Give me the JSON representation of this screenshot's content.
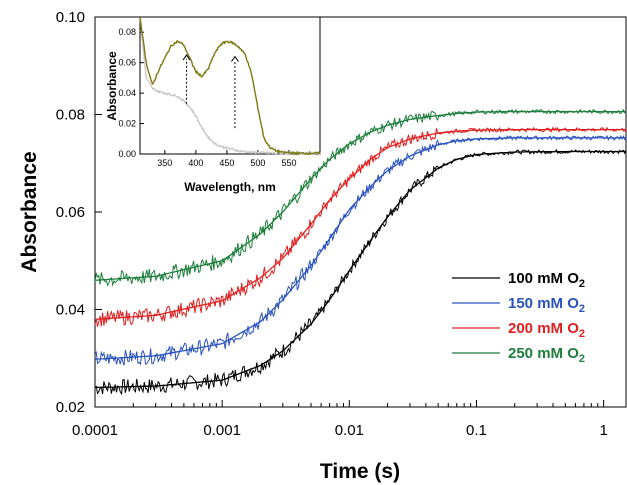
{
  "chart_data": [
    {
      "type": "line",
      "title": "",
      "xlabel": "Time (s)",
      "ylabel": "Absorbance",
      "xscale": "log",
      "xlim": [
        0.0001,
        1.5
      ],
      "ylim": [
        0.02,
        0.1
      ],
      "x_ticks": [
        0.0001,
        0.001,
        0.01,
        0.1,
        1
      ],
      "x_tick_labels": [
        "0.0001",
        "0.001",
        "0.01",
        "0.1",
        "1"
      ],
      "y_ticks": [
        0.02,
        0.04,
        0.06,
        0.08,
        0.1
      ],
      "y_tick_labels": [
        "0.02",
        "0.04",
        "0.06",
        "0.08",
        "0.10"
      ],
      "grid": false,
      "legend_position": "right",
      "series": [
        {
          "name": "100 mM O2",
          "label_main": "100 mM O",
          "label_sub": "2",
          "color": "#000000",
          "x": [
            0.0001,
            0.0003,
            0.001,
            0.002,
            0.003,
            0.005,
            0.007,
            0.01,
            0.015,
            0.02,
            0.03,
            0.05,
            0.07,
            0.1,
            0.2,
            0.5,
            1,
            1.5
          ],
          "y": [
            0.024,
            0.0243,
            0.0255,
            0.0285,
            0.0315,
            0.037,
            0.042,
            0.048,
            0.0545,
            0.059,
            0.0645,
            0.069,
            0.0708,
            0.0718,
            0.0723,
            0.0724,
            0.0724,
            0.0724
          ]
        },
        {
          "name": "150 mM O2",
          "label_main": "150 mM O",
          "label_sub": "2",
          "color": "#2a52be",
          "x": [
            0.0001,
            0.0003,
            0.001,
            0.002,
            0.003,
            0.005,
            0.007,
            0.01,
            0.015,
            0.02,
            0.03,
            0.05,
            0.07,
            0.1,
            0.2,
            0.5,
            1,
            1.5
          ],
          "y": [
            0.0298,
            0.0305,
            0.033,
            0.0375,
            0.042,
            0.049,
            0.0545,
            0.0605,
            0.0655,
            0.0685,
            0.0715,
            0.0738,
            0.0746,
            0.075,
            0.0752,
            0.0752,
            0.0752,
            0.0752
          ]
        },
        {
          "name": "200 mM O2",
          "label_main": "200 mM O",
          "label_sub": "2",
          "color": "#e02020",
          "x": [
            0.0001,
            0.0003,
            0.001,
            0.002,
            0.003,
            0.005,
            0.007,
            0.01,
            0.015,
            0.02,
            0.03,
            0.05,
            0.07,
            0.1,
            0.2,
            0.5,
            1,
            1.5
          ],
          "y": [
            0.038,
            0.0388,
            0.0418,
            0.0465,
            0.0505,
            0.0575,
            0.0625,
            0.0668,
            0.071,
            0.0732,
            0.075,
            0.0762,
            0.0766,
            0.0768,
            0.0769,
            0.0769,
            0.0769,
            0.0769
          ]
        },
        {
          "name": "250 mM O2",
          "label_main": "250 mM O",
          "label_sub": "2",
          "color": "#1e7e3c",
          "x": [
            0.0001,
            0.0003,
            0.001,
            0.002,
            0.003,
            0.005,
            0.007,
            0.01,
            0.015,
            0.02,
            0.03,
            0.05,
            0.07,
            0.1,
            0.2,
            0.5,
            1,
            1.5
          ],
          "y": [
            0.046,
            0.0468,
            0.05,
            0.0555,
            0.06,
            0.0668,
            0.0708,
            0.074,
            0.0765,
            0.0778,
            0.079,
            0.0798,
            0.0802,
            0.0805,
            0.0806,
            0.0806,
            0.0806,
            0.0806
          ]
        }
      ]
    },
    {
      "type": "line",
      "title": "",
      "xlabel": "Wavelength, nm",
      "ylabel": "Absorbance",
      "xlim": [
        310,
        600
      ],
      "ylim": [
        0,
        0.09
      ],
      "x_ticks": [
        350,
        400,
        450,
        500,
        550
      ],
      "x_tick_labels": [
        "350",
        "400",
        "450",
        "500",
        "550"
      ],
      "y_ticks": [
        0,
        0.02,
        0.04,
        0.06,
        0.08
      ],
      "y_tick_labels": [
        "0.00",
        "0.02",
        "0.04",
        "0.06",
        "0.08"
      ],
      "legend_position": "none",
      "series": [
        {
          "color": "#7a7a10",
          "x": [
            310,
            320,
            330,
            340,
            350,
            360,
            370,
            380,
            390,
            400,
            410,
            420,
            430,
            440,
            450,
            460,
            470,
            480,
            490,
            500,
            510,
            520,
            530,
            540,
            550,
            560,
            570,
            580,
            590,
            600
          ],
          "y": [
            0.09,
            0.06,
            0.045,
            0.055,
            0.063,
            0.071,
            0.074,
            0.072,
            0.063,
            0.054,
            0.051,
            0.056,
            0.066,
            0.072,
            0.074,
            0.073,
            0.07,
            0.065,
            0.052,
            0.03,
            0.01,
            0.004,
            0.002,
            0.001,
            0.001,
            0.0005,
            0.0005,
            0.0005,
            0.0005,
            0.0005
          ]
        },
        {
          "color": "#c8c8c8",
          "x": [
            310,
            320,
            330,
            340,
            350,
            360,
            370,
            380,
            390,
            400,
            410,
            420,
            430,
            440,
            450,
            460,
            470,
            480,
            490,
            500,
            510,
            520,
            530,
            540,
            550,
            560,
            570,
            580,
            590,
            600
          ],
          "y": [
            0.09,
            0.05,
            0.043,
            0.041,
            0.04,
            0.039,
            0.038,
            0.035,
            0.031,
            0.025,
            0.017,
            0.011,
            0.007,
            0.005,
            0.004,
            0.003,
            0.002,
            0.0015,
            0.001,
            0.001,
            0.0008,
            0.0005,
            0.0005,
            0.0005,
            0.0005,
            0.0005,
            0.0005,
            0.0005,
            0.0005,
            0.0005
          ]
        }
      ],
      "annotations": [
        {
          "type": "arrow-up",
          "x": 385,
          "from": 0.033,
          "to": 0.065
        },
        {
          "type": "arrow-up",
          "x": 463,
          "from": 0.017,
          "to": 0.064
        }
      ]
    }
  ]
}
